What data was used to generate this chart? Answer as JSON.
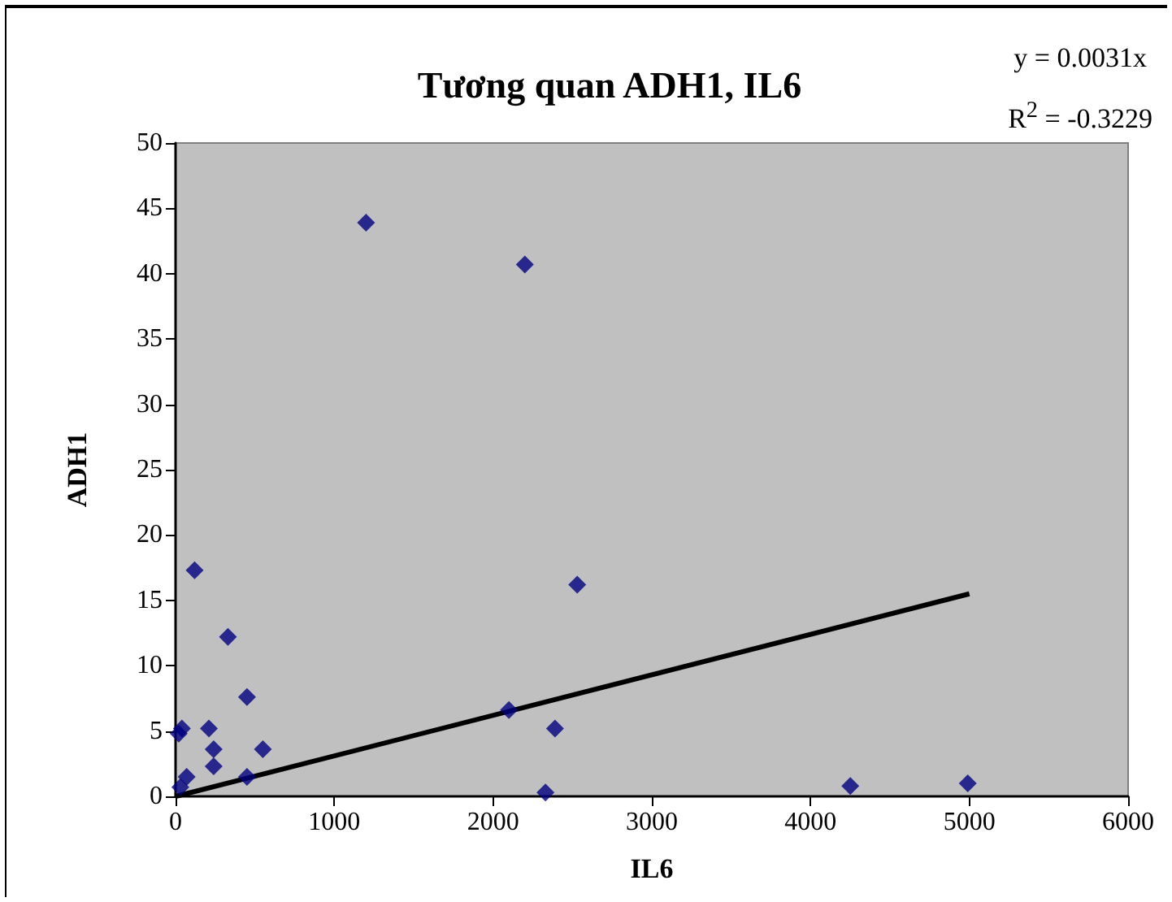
{
  "chart_data": {
    "type": "scatter",
    "title": "Tương quan ADH1, IL6",
    "xlabel": "IL6",
    "ylabel": "ADH1",
    "annotations": [
      "y = 0.0031x",
      "R$^{2}$ = -0.3229"
    ],
    "xlim": [
      0,
      6000
    ],
    "xticks": [
      0,
      1000,
      2000,
      3000,
      4000,
      5000,
      6000
    ],
    "ylim": [
      0,
      50
    ],
    "yticks": [
      0,
      5,
      10,
      15,
      20,
      25,
      30,
      35,
      40,
      45,
      50
    ],
    "grid": false,
    "marker": "diamond",
    "series": [
      {
        "color": "#000080",
        "x": [
          1200,
          2200,
          120,
          2530,
          330,
          450,
          2100,
          2390,
          20,
          40,
          210,
          240,
          550,
          240,
          450,
          70,
          30,
          2330,
          4250,
          4990
        ],
        "values": [
          43.9,
          40.7,
          17.3,
          16.2,
          12.2,
          7.6,
          6.6,
          5.2,
          4.8,
          5.2,
          5.2,
          3.6,
          3.6,
          2.3,
          1.5,
          1.5,
          0.7,
          0.3,
          0.8,
          1.0
        ]
      },
      {
        "type": "line",
        "color": "#000000",
        "marker": "none",
        "line_style": "solid",
        "x": [
          0,
          5000
        ],
        "values": [
          0,
          15.5
        ]
      }
    ]
  }
}
